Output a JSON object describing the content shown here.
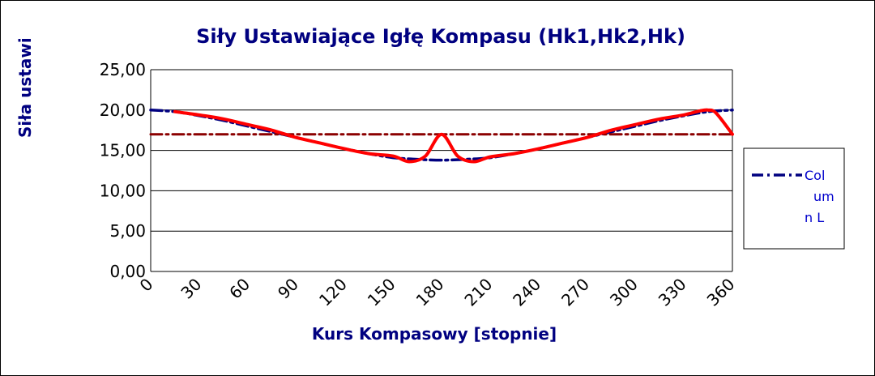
{
  "colors": {
    "title": "#000080",
    "series_hk": "#000080",
    "series_hk2": "#8b0000",
    "series_hk1": "#ff0000",
    "grid": "#000000",
    "legend_text": "#0000cc"
  },
  "chart_data": {
    "type": "line",
    "title": "Siły Ustawiające Igłę Kompasu (Hk1,Hk2,Hk)",
    "xlabel": "Kurs Kompasowy  [stopnie]",
    "ylabel": "Siła ustawi",
    "xlim": [
      0,
      360
    ],
    "ylim": [
      0,
      25
    ],
    "x_ticks": [
      "0",
      "30",
      "60",
      "90",
      "120",
      "150",
      "180",
      "210",
      "240",
      "270",
      "300",
      "330",
      "360"
    ],
    "y_ticks": [
      "0,00",
      "5,00",
      "10,00",
      "15,00",
      "20,00",
      "25,00"
    ],
    "grid": "horizontal",
    "legend_position": "right",
    "legend": {
      "label": "Column L"
    },
    "series": [
      {
        "name": "Column L",
        "style": "dash-dot",
        "x": [
          0,
          15,
          30,
          45,
          60,
          75,
          90,
          105,
          120,
          135,
          150,
          165,
          180,
          195,
          210,
          225,
          240,
          255,
          270,
          285,
          300,
          315,
          330,
          345,
          360
        ],
        "y": [
          20.0,
          19.8,
          19.3,
          18.7,
          18.0,
          17.3,
          16.6,
          15.9,
          15.2,
          14.6,
          14.1,
          13.9,
          13.8,
          13.9,
          14.1,
          14.6,
          15.2,
          15.9,
          16.6,
          17.3,
          18.0,
          18.7,
          19.3,
          19.8,
          20.0
        ]
      },
      {
        "style": "dash-dot",
        "x": [
          0,
          360
        ],
        "y": [
          17.0,
          17.0
        ]
      },
      {
        "style": "solid",
        "x": [
          15,
          30,
          45,
          60,
          75,
          90,
          105,
          120,
          135,
          150,
          160,
          170,
          180,
          190,
          200,
          210,
          225,
          240,
          255,
          270,
          285,
          300,
          315,
          330,
          340,
          345,
          350,
          360
        ],
        "y": [
          19.8,
          19.4,
          18.9,
          18.2,
          17.5,
          16.6,
          15.9,
          15.2,
          14.6,
          14.3,
          13.6,
          14.3,
          17.0,
          14.3,
          13.6,
          14.2,
          14.6,
          15.2,
          15.9,
          16.6,
          17.5,
          18.2,
          18.9,
          19.4,
          19.9,
          20.0,
          19.6,
          17.0
        ]
      }
    ]
  }
}
